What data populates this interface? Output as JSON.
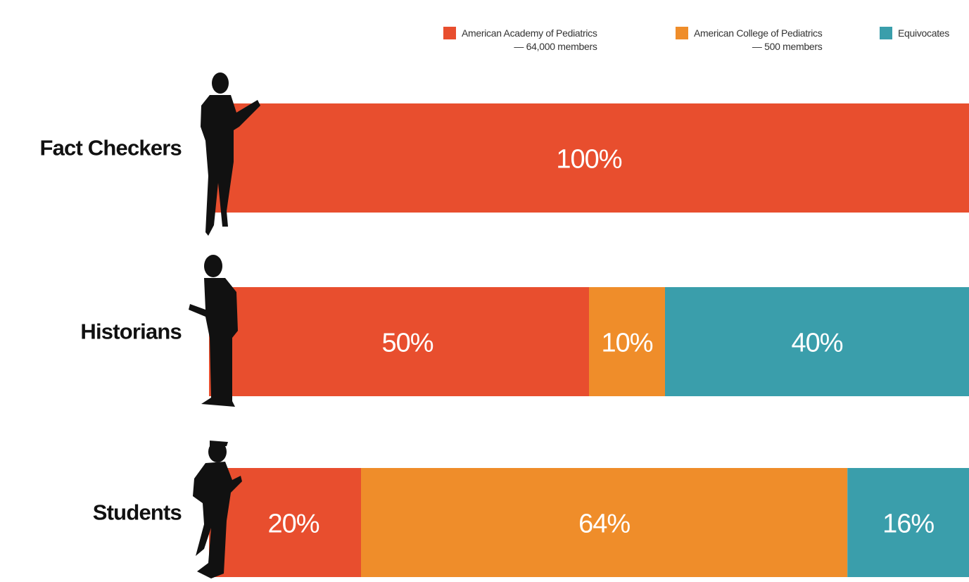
{
  "chart_data": {
    "type": "stacked_bar_horizontal",
    "categories": [
      "Fact Checkers",
      "Historians",
      "Students"
    ],
    "series": [
      {
        "name": "American Academy of Pediatrics\n— 64,000 members",
        "color": "#e84e2e",
        "values": [
          100,
          50,
          20
        ],
        "value_labels": [
          "100%",
          "50%",
          "20%"
        ]
      },
      {
        "name": "American College of Pediatrics\n— 500 members",
        "color": "#ef8d2a",
        "values": [
          0,
          10,
          64
        ],
        "value_labels": [
          null,
          "10%",
          "64%"
        ]
      },
      {
        "name": "Equivocates",
        "color": "#3a9eab",
        "values": [
          0,
          40,
          16
        ],
        "value_labels": [
          null,
          "40%",
          "16%"
        ]
      }
    ],
    "xlim": [
      0,
      100
    ],
    "legend": "top-right"
  }
}
